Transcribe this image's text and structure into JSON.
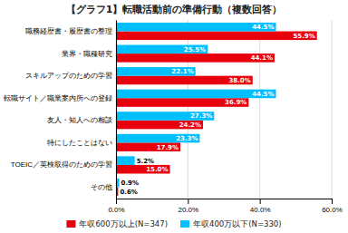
{
  "chart_data": {
    "type": "bar",
    "orientation": "horizontal",
    "title": "【グラフ1】転職活動前の準備行動（複数回答）",
    "categories": [
      "職務経歴書・履歴書の整理",
      "業界・職種研究",
      "スキルアップのための学習",
      "転職サイト／職業案内所への登録",
      "友人・知人への相談",
      "特にしたことはない",
      "TOEIC／英検取得のための学習",
      "その他"
    ],
    "series": [
      {
        "name": "年収600万以上(N=347)",
        "color": "#e8000d",
        "values": [
          55.9,
          44.1,
          38.0,
          36.9,
          24.2,
          17.9,
          15.0,
          0.6
        ],
        "value_labels": [
          "55.9%",
          "44.1%",
          "38.0%",
          "36.9%",
          "24.2%",
          "17.9%",
          "15.0%",
          "0.6%"
        ]
      },
      {
        "name": "年収400万以下(N=330)",
        "color": "#00bfff",
        "values": [
          44.5,
          25.5,
          22.1,
          44.5,
          27.3,
          23.3,
          5.2,
          0.9
        ],
        "value_labels": [
          "44.5%",
          "25.5%",
          "22.1%",
          "44.5%",
          "27.3%",
          "23.3%",
          "5.2%",
          "0.9%"
        ]
      }
    ],
    "xlim": [
      0,
      60
    ],
    "xticks": [
      {
        "value": 0,
        "label": "0.0%"
      },
      {
        "value": 20,
        "label": "20.0%"
      },
      {
        "value": 40,
        "label": "40.0%"
      },
      {
        "value": 60,
        "label": "60.0%"
      }
    ],
    "grid": true,
    "data_labels": true,
    "legend": "bottom"
  }
}
